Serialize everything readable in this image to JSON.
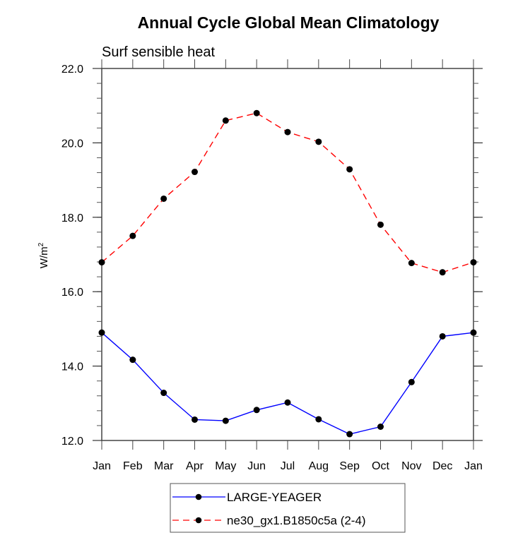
{
  "chart_data": {
    "type": "line",
    "title": "Annual Cycle Global Mean Climatology",
    "subtitle": "Surf sensible heat",
    "xlabel": "",
    "ylabel": "W/m",
    "ylabel_superscript": "2",
    "categories": [
      "Jan",
      "Feb",
      "Mar",
      "Apr",
      "May",
      "Jun",
      "Jul",
      "Aug",
      "Sep",
      "Oct",
      "Nov",
      "Dec",
      "Jan"
    ],
    "ylim": [
      12.0,
      22.0
    ],
    "yticks": [
      12.0,
      14.0,
      16.0,
      18.0,
      20.0,
      22.0
    ],
    "ytick_labels": [
      "12.0",
      "14.0",
      "16.0",
      "18.0",
      "20.0",
      "22.0"
    ],
    "y_minor_step": 0.4,
    "grid": false,
    "legend_position": "bottom-center",
    "series": [
      {
        "name": "LARGE-YEAGER",
        "color": "#0000ff",
        "line_style": "solid",
        "marker": "filled-circle",
        "marker_color": "#000000",
        "values": [
          14.9,
          14.17,
          13.28,
          12.56,
          12.53,
          12.82,
          13.02,
          12.57,
          12.17,
          12.37,
          13.57,
          14.8,
          14.9
        ]
      },
      {
        "name": "ne30_gx1.B1850c5a (2-4)",
        "color": "#ff0000",
        "line_style": "dashed",
        "marker": "filled-circle",
        "marker_color": "#000000",
        "values": [
          16.79,
          17.5,
          18.5,
          19.22,
          20.6,
          20.8,
          20.29,
          20.03,
          19.29,
          17.8,
          16.77,
          16.52,
          16.79
        ]
      }
    ]
  }
}
